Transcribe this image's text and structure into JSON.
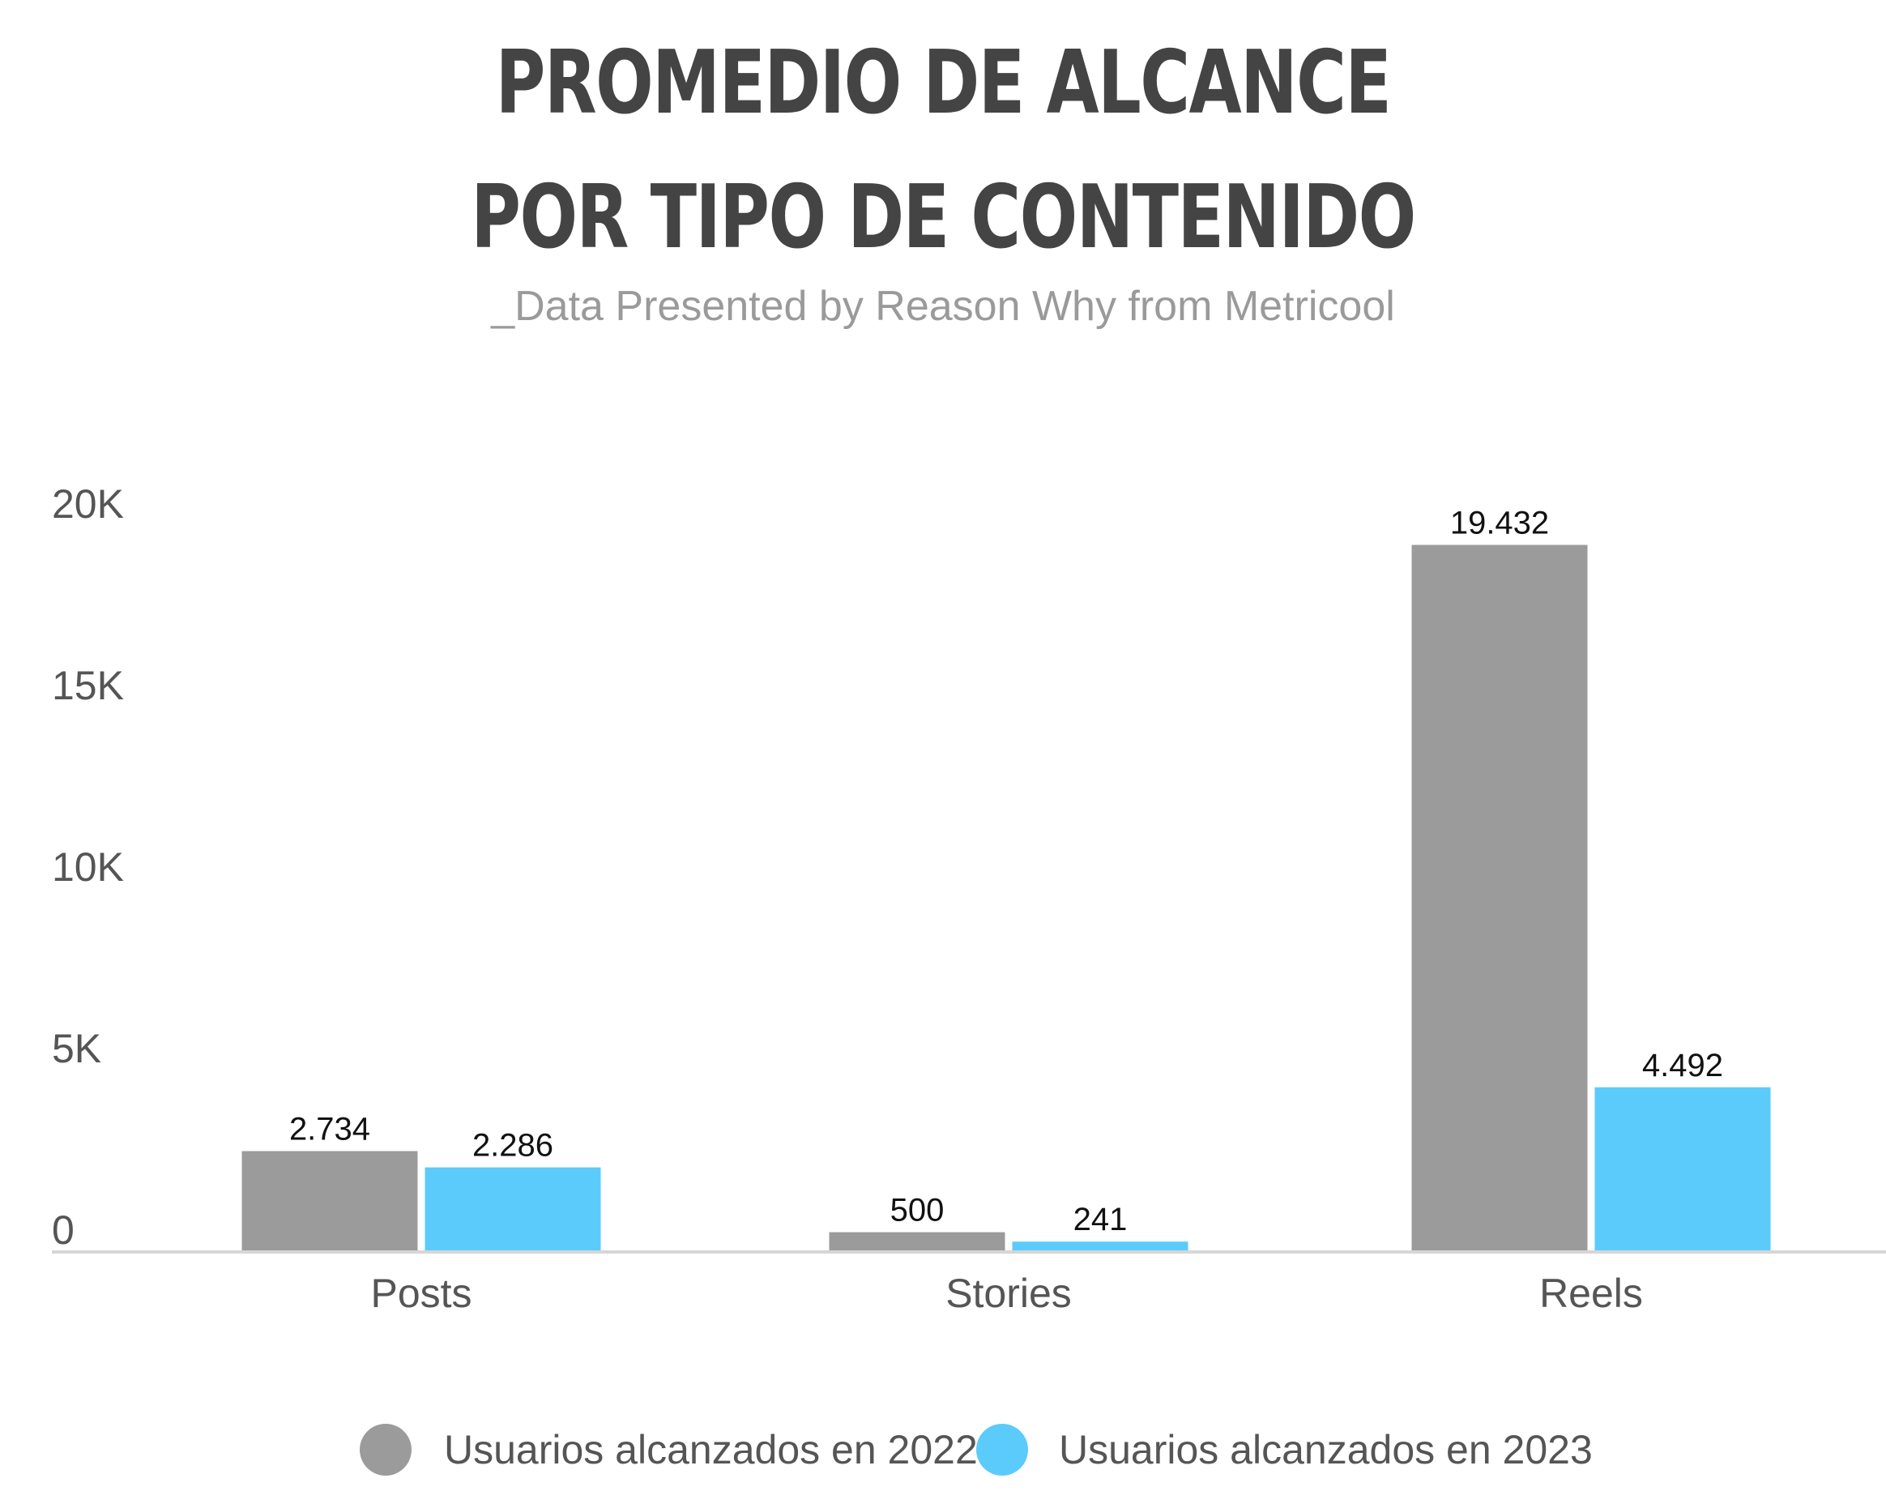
{
  "chart_data": {
    "type": "bar",
    "title_lines": [
      "PROMEDIO DE ALCANCE",
      "POR TIPO DE CONTENIDO"
    ],
    "subtitle": "_Data Presented by Reason Why from Metricool",
    "categories": [
      "Posts",
      "Stories",
      "Reels"
    ],
    "series": [
      {
        "name": "Usuarios alcanzados en 2022",
        "color": "#9b9b9b",
        "values": [
          2734,
          500,
          19432
        ],
        "labels": [
          "2.734",
          "500",
          "19.432"
        ]
      },
      {
        "name": "Usuarios alcanzados en 2023",
        "color": "#5bcbfc",
        "values": [
          2286,
          241,
          4492
        ],
        "labels": [
          "2.286",
          "241",
          "4.492"
        ]
      }
    ],
    "y_ticks": [
      {
        "value": 0,
        "label": "0"
      },
      {
        "value": 5000,
        "label": "5K"
      },
      {
        "value": 10000,
        "label": "10K"
      },
      {
        "value": 15000,
        "label": "15K"
      },
      {
        "value": 20000,
        "label": "20K"
      }
    ],
    "ylim": [
      0,
      20000
    ],
    "grid": false,
    "legend_position": "bottom-center"
  }
}
